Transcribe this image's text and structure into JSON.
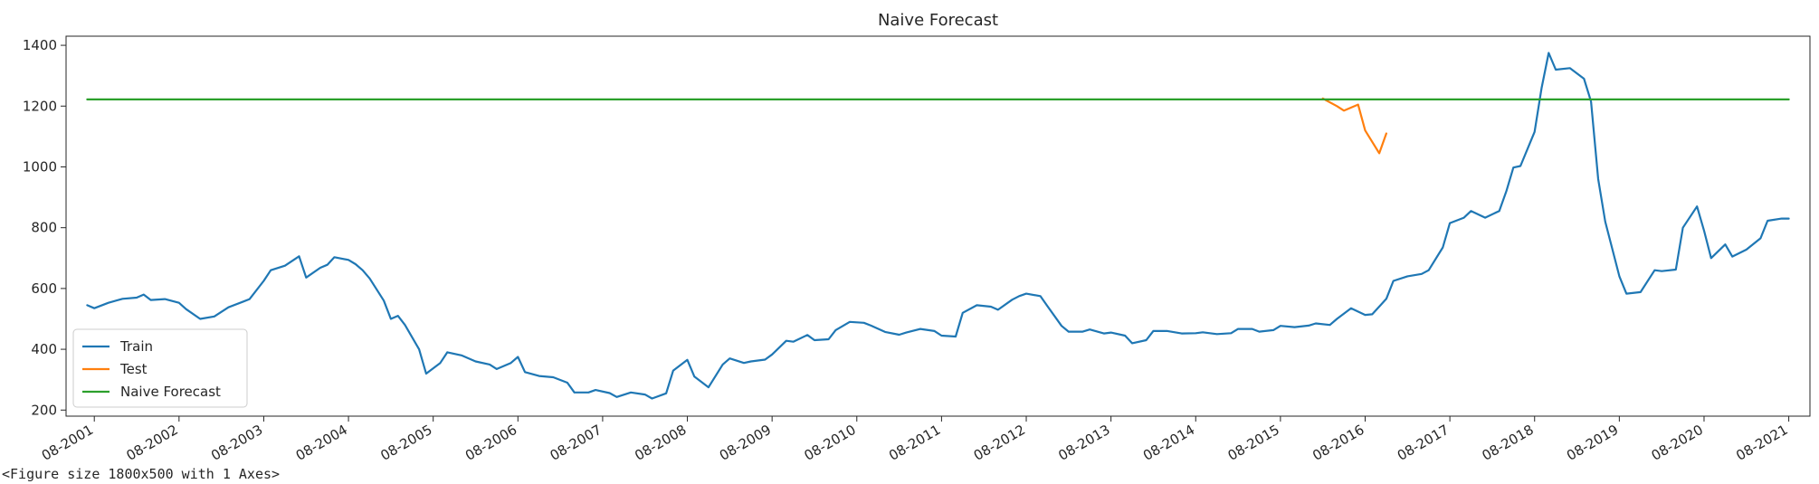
{
  "chart_data": {
    "type": "line",
    "title": "Naive Forecast",
    "xlabel": "",
    "ylabel": "",
    "ylim": [
      180,
      1430
    ],
    "x_range": [
      "2001-04",
      "2021-11"
    ],
    "y_ticks": [
      200,
      400,
      600,
      800,
      1000,
      1200,
      1400
    ],
    "x_ticks": [
      "08-2001",
      "08-2002",
      "08-2003",
      "08-2004",
      "08-2005",
      "08-2006",
      "08-2007",
      "08-2008",
      "08-2009",
      "08-2010",
      "08-2011",
      "08-2012",
      "08-2013",
      "08-2014",
      "08-2015",
      "08-2016",
      "08-2017",
      "08-2018",
      "08-2019",
      "08-2020",
      "08-2021"
    ],
    "grid": false,
    "legend_position": "lower-left",
    "series": [
      {
        "name": "Train",
        "color": "#1f77b4",
        "points": [
          [
            "2001-07",
            545
          ],
          [
            "2001-08",
            535
          ],
          [
            "2001-10",
            553
          ],
          [
            "2001-12",
            566
          ],
          [
            "2002-02",
            570
          ],
          [
            "2002-03",
            580
          ],
          [
            "2002-04",
            562
          ],
          [
            "2002-06",
            565
          ],
          [
            "2002-08",
            553
          ],
          [
            "2002-09",
            532
          ],
          [
            "2002-11",
            500
          ],
          [
            "2003-01",
            508
          ],
          [
            "2003-03",
            538
          ],
          [
            "2003-05",
            556
          ],
          [
            "2003-06",
            565
          ],
          [
            "2003-08",
            625
          ],
          [
            "2003-09",
            660
          ],
          [
            "2003-11",
            675
          ],
          [
            "2004-01",
            706
          ],
          [
            "2004-02",
            636
          ],
          [
            "2004-04",
            668
          ],
          [
            "2004-05",
            678
          ],
          [
            "2004-06",
            703
          ],
          [
            "2004-08",
            694
          ],
          [
            "2004-09",
            680
          ],
          [
            "2004-10",
            660
          ],
          [
            "2004-11",
            633
          ],
          [
            "2005-01",
            560
          ],
          [
            "2005-02",
            500
          ],
          [
            "2005-03",
            510
          ],
          [
            "2005-04",
            480
          ],
          [
            "2005-06",
            400
          ],
          [
            "2005-07",
            320
          ],
          [
            "2005-09",
            355
          ],
          [
            "2005-10",
            390
          ],
          [
            "2005-12",
            380
          ],
          [
            "2006-02",
            360
          ],
          [
            "2006-04",
            350
          ],
          [
            "2006-05",
            335
          ],
          [
            "2006-07",
            355
          ],
          [
            "2006-08",
            375
          ],
          [
            "2006-09",
            325
          ],
          [
            "2006-11",
            312
          ],
          [
            "2007-01",
            308
          ],
          [
            "2007-03",
            290
          ],
          [
            "2007-04",
            258
          ],
          [
            "2007-06",
            258
          ],
          [
            "2007-07",
            266
          ],
          [
            "2007-09",
            256
          ],
          [
            "2007-10",
            243
          ],
          [
            "2007-12",
            258
          ],
          [
            "2008-02",
            251
          ],
          [
            "2008-03",
            238
          ],
          [
            "2008-05",
            255
          ],
          [
            "2008-06",
            330
          ],
          [
            "2008-08",
            365
          ],
          [
            "2008-09",
            310
          ],
          [
            "2008-11",
            275
          ],
          [
            "2009-01",
            350
          ],
          [
            "2009-02",
            370
          ],
          [
            "2009-04",
            355
          ],
          [
            "2009-05",
            360
          ],
          [
            "2009-07",
            366
          ],
          [
            "2009-08",
            383
          ],
          [
            "2009-10",
            428
          ],
          [
            "2009-11",
            425
          ],
          [
            "2010-01",
            447
          ],
          [
            "2010-02",
            430
          ],
          [
            "2010-04",
            433
          ],
          [
            "2010-05",
            463
          ],
          [
            "2010-07",
            490
          ],
          [
            "2010-09",
            487
          ],
          [
            "2010-10",
            478
          ],
          [
            "2010-12",
            457
          ],
          [
            "2011-02",
            448
          ],
          [
            "2011-03",
            455
          ],
          [
            "2011-05",
            467
          ],
          [
            "2011-07",
            460
          ],
          [
            "2011-08",
            445
          ],
          [
            "2011-10",
            442
          ],
          [
            "2011-11",
            520
          ],
          [
            "2012-01",
            545
          ],
          [
            "2012-03",
            540
          ],
          [
            "2012-04",
            530
          ],
          [
            "2012-06",
            563
          ],
          [
            "2012-07",
            575
          ],
          [
            "2012-08",
            583
          ],
          [
            "2012-10",
            575
          ],
          [
            "2012-11",
            542
          ],
          [
            "2013-01",
            477
          ],
          [
            "2013-02",
            458
          ],
          [
            "2013-04",
            458
          ],
          [
            "2013-05",
            465
          ],
          [
            "2013-07",
            452
          ],
          [
            "2013-08",
            455
          ],
          [
            "2013-10",
            445
          ],
          [
            "2013-11",
            420
          ],
          [
            "2014-01",
            430
          ],
          [
            "2014-02",
            460
          ],
          [
            "2014-04",
            460
          ],
          [
            "2014-06",
            452
          ],
          [
            "2014-08",
            453
          ],
          [
            "2014-09",
            456
          ],
          [
            "2014-11",
            450
          ],
          [
            "2015-01",
            453
          ],
          [
            "2015-02",
            467
          ],
          [
            "2015-04",
            467
          ],
          [
            "2015-05",
            458
          ],
          [
            "2015-07",
            463
          ],
          [
            "2015-08",
            477
          ],
          [
            "2015-10",
            473
          ],
          [
            "2015-12",
            478
          ],
          [
            "2016-01",
            485
          ],
          [
            "2016-03",
            480
          ],
          [
            "2016-04",
            500
          ],
          [
            "2016-06",
            535
          ],
          [
            "2016-08",
            513
          ],
          [
            "2016-09",
            515
          ],
          [
            "2016-11",
            566
          ],
          [
            "2016-12",
            625
          ],
          [
            "2017-02",
            640
          ],
          [
            "2017-04",
            648
          ],
          [
            "2017-05",
            660
          ],
          [
            "2017-07",
            735
          ],
          [
            "2017-08",
            815
          ],
          [
            "2017-10",
            833
          ],
          [
            "2017-11",
            855
          ],
          [
            "2018-01",
            833
          ],
          [
            "2018-03",
            855
          ],
          [
            "2018-04",
            920
          ],
          [
            "2018-05",
            998
          ],
          [
            "2018-06",
            1003
          ],
          [
            "2018-08",
            1115
          ],
          [
            "2018-09",
            1260
          ],
          [
            "2018-10",
            1375
          ],
          [
            "2018-11",
            1320
          ],
          [
            "2019-01",
            1325
          ],
          [
            "2019-03",
            1290
          ],
          [
            "2019-04",
            1215
          ],
          [
            "2019-05",
            960
          ],
          [
            "2019-06",
            820
          ],
          [
            "2019-08",
            640
          ],
          [
            "2019-09",
            583
          ],
          [
            "2019-11",
            588
          ],
          [
            "2020-01",
            660
          ],
          [
            "2020-02",
            657
          ],
          [
            "2020-04",
            662
          ],
          [
            "2020-05",
            800
          ],
          [
            "2020-07",
            870
          ],
          [
            "2020-08",
            790
          ],
          [
            "2020-09",
            700
          ],
          [
            "2020-11",
            745
          ],
          [
            "2020-12",
            705
          ],
          [
            "2021-02",
            728
          ],
          [
            "2021-04",
            765
          ],
          [
            "2021-05",
            823
          ],
          [
            "2021-07",
            830
          ],
          [
            "2021-08",
            830
          ]
        ]
      },
      {
        "name": "Test",
        "color": "#ff7f0e",
        "points": [
          [
            "2016-02",
            1225
          ],
          [
            "2016-04",
            1200
          ],
          [
            "2016-05",
            1185
          ],
          [
            "2016-07",
            1205
          ],
          [
            "2016-08",
            1120
          ],
          [
            "2016-10",
            1045
          ],
          [
            "2016-11",
            1110
          ]
        ]
      },
      {
        "name": "Naive Forecast",
        "color": "#2ca02c",
        "points": [
          [
            "2001-07",
            1222
          ],
          [
            "2021-08",
            1222
          ]
        ]
      }
    ]
  },
  "footer": {
    "text": "<Figure size 1800x500 with 1 Axes>"
  }
}
